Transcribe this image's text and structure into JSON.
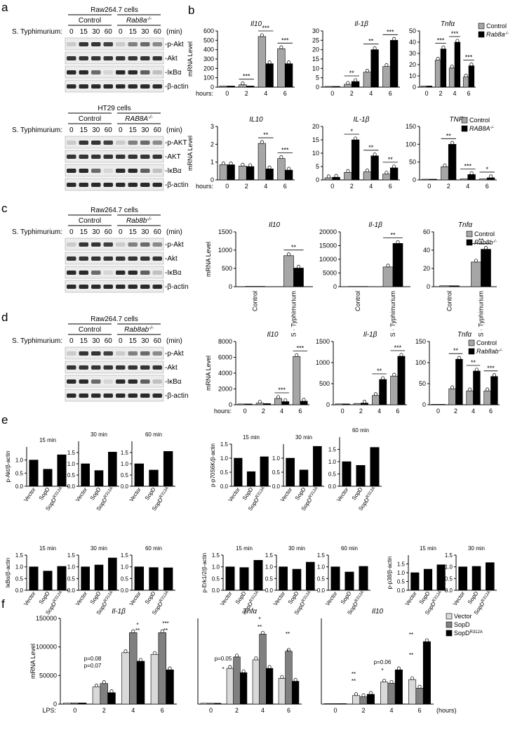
{
  "panels": {
    "a": "a",
    "b": "b",
    "c": "c",
    "d": "d",
    "e": "e",
    "f": "f"
  },
  "blots": [
    {
      "id": "a1",
      "cell": "Raw264.7 cells",
      "g1": "Control",
      "g2": "Rab8a",
      "g2sup": "-/-",
      "infect": "S. Typhimurium:",
      "times": [
        "0",
        "15",
        "30",
        "60",
        "0",
        "15",
        "30",
        "60"
      ],
      "unit": "(min)",
      "labels": [
        "-p-Akt",
        "-Akt",
        "-IκBα",
        "-β-actin"
      ]
    },
    {
      "id": "a2",
      "cell": "HT29 cells",
      "g1": "Control",
      "g2": "RAB8A",
      "g2sup": "-/-",
      "infect": "S. Typhimurium:",
      "times": [
        "0",
        "15",
        "30",
        "60",
        "0",
        "15",
        "30",
        "60"
      ],
      "unit": "(min)",
      "labels": [
        "-p-AKT",
        "-AKT",
        "-IκBα",
        "-β-actin"
      ]
    },
    {
      "id": "c",
      "cell": "Raw264.7 cells",
      "g1": "Control",
      "g2": "Rab8b",
      "g2sup": "-/-",
      "infect": "S. Typhimurium:",
      "times": [
        "0",
        "15",
        "30",
        "60",
        "0",
        "15",
        "30",
        "60"
      ],
      "unit": "(min)",
      "labels": [
        "-p-Akt",
        "-Akt",
        "-IκBα",
        "-β-actin"
      ]
    },
    {
      "id": "d",
      "cell": "Raw264.7 cells",
      "g1": "Control",
      "g2": "Rab8ab",
      "g2sup": "-/-",
      "infect": "S. Typhimurium:",
      "times": [
        "0",
        "15",
        "30",
        "60",
        "0",
        "15",
        "30",
        "60"
      ],
      "unit": "(min)",
      "labels": [
        "-p-Akt",
        "-Akt",
        "-IκBα",
        "-β-actin"
      ]
    }
  ],
  "chart_data": [
    {
      "id": "b1",
      "type": "bar",
      "title": "Il10",
      "ylabel": "mRNA Level",
      "xprefix": "hours:",
      "categories": [
        "0",
        "2",
        "4",
        "6"
      ],
      "ylim": [
        0,
        600
      ],
      "yticks": [
        0,
        100,
        200,
        300,
        400,
        500,
        600
      ],
      "series": [
        {
          "values": [
            12,
            25,
            540,
            410
          ]
        },
        {
          "values": [
            12,
            12,
            250,
            250
          ]
        }
      ],
      "sig": [
        "",
        "***",
        "***",
        "***"
      ]
    },
    {
      "id": "b2",
      "type": "bar",
      "title": "Il-1β",
      "categories": [
        "0",
        "2",
        "4",
        "6"
      ],
      "ylim": [
        0,
        30
      ],
      "yticks": [
        0,
        5,
        10,
        15,
        20,
        25,
        30
      ],
      "series": [
        {
          "values": [
            0.4,
            1.5,
            8,
            11
          ]
        },
        {
          "values": [
            0.4,
            3,
            20,
            25
          ]
        }
      ],
      "sig": [
        "",
        "**",
        "**",
        "***"
      ]
    },
    {
      "id": "b3",
      "type": "bar",
      "title": "Tnfα",
      "categories": [
        "0",
        "2",
        "4",
        "6"
      ],
      "ylim": [
        0,
        50
      ],
      "yticks": [
        0,
        10,
        20,
        30,
        40,
        50
      ],
      "series": [
        {
          "name": "Control",
          "values": [
            1,
            24,
            17,
            9
          ]
        },
        {
          "name": "Rab8a-/-",
          "values": [
            1,
            34,
            40,
            19
          ]
        }
      ],
      "sig": [
        "",
        "***",
        "***",
        "***"
      ]
    },
    {
      "id": "b4",
      "type": "bar",
      "title": "IL10",
      "ylabel": "mRNA Level",
      "xprefix": "hours:",
      "categories": [
        "0",
        "2",
        "4",
        "6"
      ],
      "ylim": [
        0,
        3
      ],
      "yticks": [
        0,
        1,
        2,
        3
      ],
      "series": [
        {
          "values": [
            0.85,
            0.78,
            2.05,
            1.2
          ]
        },
        {
          "values": [
            0.85,
            0.75,
            0.62,
            0.55
          ]
        }
      ],
      "sig": [
        "",
        "",
        "**",
        "***"
      ]
    },
    {
      "id": "b5",
      "type": "bar",
      "title": "IL-1β",
      "categories": [
        "0",
        "2",
        "4",
        "6"
      ],
      "ylim": [
        0,
        20
      ],
      "yticks": [
        0,
        5,
        10,
        15,
        20
      ],
      "series": [
        {
          "values": [
            0.8,
            2.8,
            3,
            2.2
          ]
        },
        {
          "values": [
            1,
            15,
            9,
            4.5
          ]
        }
      ],
      "sig": [
        "",
        "*",
        "**",
        "**"
      ]
    },
    {
      "id": "b6",
      "type": "bar",
      "title": "TNFα",
      "categories": [
        "0",
        "2",
        "4",
        "6"
      ],
      "ylim": [
        0,
        150
      ],
      "yticks": [
        0,
        50,
        100,
        150
      ],
      "series": [
        {
          "name": "Control",
          "values": [
            2,
            37,
            3,
            3
          ]
        },
        {
          "name": "RAB8A-/-",
          "values": [
            2,
            100,
            15,
            6
          ]
        }
      ],
      "sig": [
        "",
        "**",
        "***",
        "*"
      ]
    },
    {
      "id": "c1",
      "type": "bar",
      "title": "Il10",
      "ylabel": "mRNA Level",
      "categories": [
        "Control",
        "S · Typhimurium"
      ],
      "ylim": [
        0,
        1500
      ],
      "yticks": [
        0,
        500,
        1000,
        1500
      ],
      "series": [
        {
          "values": [
            10,
            850
          ]
        },
        {
          "values": [
            10,
            510
          ]
        }
      ],
      "sig": [
        "",
        "**"
      ]
    },
    {
      "id": "c2",
      "type": "bar",
      "title": "Il-1β",
      "categories": [
        "Control",
        "S · Typhimurium"
      ],
      "ylim": [
        0,
        20000
      ],
      "yticks": [
        0,
        5000,
        10000,
        15000,
        20000
      ],
      "series": [
        {
          "values": [
            100,
            7200
          ]
        },
        {
          "values": [
            100,
            15800
          ]
        }
      ],
      "sig": [
        "",
        "**"
      ]
    },
    {
      "id": "c3",
      "type": "bar",
      "title": "Tnfα",
      "categories": [
        "Control",
        "S · Typhimurium"
      ],
      "ylim": [
        0,
        60
      ],
      "yticks": [
        0,
        20,
        40,
        60
      ],
      "series": [
        {
          "name": "Control",
          "values": [
            1,
            27
          ]
        },
        {
          "name": "Rab8b-/-",
          "values": [
            1,
            41
          ]
        }
      ],
      "sig": [
        "",
        "**"
      ]
    },
    {
      "id": "d1",
      "type": "bar",
      "title": "Il10",
      "ylabel": "mRNA Level",
      "xprefix": "hours:",
      "categories": [
        "0",
        "2",
        "4",
        "6"
      ],
      "ylim": [
        0,
        8000
      ],
      "yticks": [
        0,
        2000,
        4000,
        6000,
        8000
      ],
      "series": [
        {
          "values": [
            100,
            200,
            800,
            6100
          ]
        },
        {
          "values": [
            100,
            150,
            400,
            450
          ]
        }
      ],
      "sig": [
        "",
        "",
        "***",
        "***"
      ]
    },
    {
      "id": "d2",
      "type": "bar",
      "title": "Il-1β",
      "categories": [
        "0",
        "2",
        "4",
        "6"
      ],
      "ylim": [
        0,
        1500
      ],
      "yticks": [
        0,
        500,
        1000,
        1500
      ],
      "series": [
        {
          "values": [
            20,
            30,
            220,
            680
          ]
        },
        {
          "values": [
            20,
            40,
            600,
            1150
          ]
        }
      ],
      "sig": [
        "",
        "",
        "**",
        "***"
      ]
    },
    {
      "id": "d3",
      "type": "bar",
      "title": "Tnfα",
      "categories": [
        "0",
        "2",
        "4",
        "6"
      ],
      "ylim": [
        0,
        150
      ],
      "yticks": [
        0,
        50,
        100,
        150
      ],
      "series": [
        {
          "name": "Control",
          "values": [
            1,
            38,
            33,
            33
          ]
        },
        {
          "name": "Rab8ab-/-",
          "values": [
            1,
            108,
            80,
            67
          ]
        }
      ],
      "sig": [
        "",
        "**",
        "**",
        "***"
      ]
    },
    {
      "id": "e1",
      "type": "bar",
      "title": "15 min",
      "ylabel": "p-Akt/β-actin",
      "categories": [
        "Vector",
        "SopD",
        "SopDR312A"
      ],
      "ylim": [
        0,
        1.5
      ],
      "yticks": [
        0.0,
        0.5,
        1.0
      ],
      "series": [
        {
          "values": [
            1.0,
            0.65,
            1.2
          ]
        }
      ]
    },
    {
      "id": "e2",
      "type": "bar",
      "title": "30 min",
      "categories": [
        "Vector",
        "SopD",
        "SopDR312A"
      ],
      "ylim": [
        0,
        2.0
      ],
      "yticks": [
        0.0,
        0.5,
        1.0,
        1.5
      ],
      "series": [
        {
          "values": [
            1.0,
            0.7,
            1.52
          ]
        }
      ]
    },
    {
      "id": "e3",
      "type": "bar",
      "title": "60 min",
      "categories": [
        "Vector",
        "SopD",
        "SopDR312A"
      ],
      "ylim": [
        0,
        2.0
      ],
      "yticks": [
        0.0,
        0.5,
        1.0,
        1.5
      ],
      "series": [
        {
          "values": [
            1.0,
            0.72,
            1.55
          ]
        }
      ]
    },
    {
      "id": "e4",
      "type": "bar",
      "title": "15 min",
      "ylabel": "p-p70S6K/β-actin",
      "categories": [
        "Vector",
        "SopD",
        "SopDR312A"
      ],
      "ylim": [
        0,
        1.5
      ],
      "yticks": [
        0.0,
        0.5,
        1.0,
        1.5
      ],
      "series": [
        {
          "values": [
            1.0,
            0.52,
            1.05
          ]
        }
      ]
    },
    {
      "id": "e5",
      "type": "bar",
      "title": "30 min",
      "categories": [
        "Vector",
        "SopD",
        "SopDR312A"
      ],
      "ylim": [
        0,
        1.5
      ],
      "yticks": [
        0.0,
        0.5,
        1.0
      ],
      "series": [
        {
          "values": [
            1.0,
            0.58,
            1.42
          ]
        }
      ]
    },
    {
      "id": "e6",
      "type": "bar",
      "title": "60 min",
      "categories": [
        "Vector",
        "SopD",
        "SopDR312A"
      ],
      "ylim": [
        0,
        2.0
      ],
      "yticks": [
        0.0,
        0.5,
        1.0,
        1.5
      ],
      "series": [
        {
          "values": [
            1.0,
            0.85,
            1.58
          ]
        }
      ]
    },
    {
      "id": "e7",
      "type": "bar",
      "title": "15 min",
      "ylabel": "IκBα/β-actin",
      "categories": [
        "Vector",
        "SopD",
        "SopDR312A"
      ],
      "ylim": [
        0,
        1.5
      ],
      "yticks": [
        0.0,
        0.5,
        1.0,
        1.5
      ],
      "series": [
        {
          "values": [
            1.0,
            0.82,
            1.02
          ]
        }
      ]
    },
    {
      "id": "e8",
      "type": "bar",
      "title": "30 min",
      "categories": [
        "Vector",
        "SopD",
        "SopDR312A"
      ],
      "ylim": [
        0,
        1.5
      ],
      "yticks": [
        0.0,
        0.5,
        1.0,
        1.5
      ],
      "series": [
        {
          "values": [
            1.0,
            1.08,
            1.38
          ]
        }
      ]
    },
    {
      "id": "e9",
      "type": "bar",
      "title": "60 min",
      "categories": [
        "Vector",
        "SopD",
        "SopDR312A"
      ],
      "ylim": [
        0,
        1.5
      ],
      "yticks": [
        0.0,
        0.5,
        1.0,
        1.5
      ],
      "series": [
        {
          "values": [
            1.0,
            0.97,
            0.96
          ]
        }
      ]
    },
    {
      "id": "e10",
      "type": "bar",
      "title": "15 min",
      "ylabel": "p-Erk1/2/β-actin",
      "categories": [
        "Vector",
        "SopD",
        "SopDR312A"
      ],
      "ylim": [
        0,
        1.5
      ],
      "yticks": [
        0.0,
        0.5,
        1.0,
        1.5
      ],
      "series": [
        {
          "values": [
            1.0,
            0.97,
            1.28
          ]
        }
      ]
    },
    {
      "id": "e11",
      "type": "bar",
      "title": "30 min",
      "categories": [
        "Vector",
        "SopD",
        "SopDR312A"
      ],
      "ylim": [
        0,
        1.5
      ],
      "yticks": [
        0.0,
        0.5,
        1.0,
        1.5
      ],
      "series": [
        {
          "values": [
            1.0,
            0.9,
            1.2
          ]
        }
      ]
    },
    {
      "id": "e12",
      "type": "bar",
      "title": "60 min",
      "categories": [
        "Vector",
        "SopD",
        "SopDR312A"
      ],
      "ylim": [
        0,
        1.5
      ],
      "yticks": [
        0.0,
        0.5,
        1.0,
        1.5
      ],
      "series": [
        {
          "values": [
            1.0,
            0.78,
            1.02
          ]
        }
      ]
    },
    {
      "id": "e13",
      "type": "bar",
      "title": "15 min",
      "ylabel": "p-p38/β-actin",
      "categories": [
        "Vector",
        "SopD",
        "SopDR312A"
      ],
      "ylim": [
        0,
        2.0
      ],
      "yticks": [
        0.0,
        0.5,
        1.0,
        1.5
      ],
      "series": [
        {
          "values": [
            1.0,
            1.2,
            1.45
          ]
        }
      ]
    },
    {
      "id": "e14",
      "type": "bar",
      "title": "30 min",
      "categories": [
        "Vector",
        "SopD",
        "SopDR312A"
      ],
      "ylim": [
        0,
        1.5
      ],
      "yticks": [
        0.0,
        0.5,
        1.0,
        1.5
      ],
      "series": [
        {
          "values": [
            1.0,
            1.02,
            1.18
          ]
        }
      ]
    },
    {
      "id": "f1",
      "type": "bar",
      "title": "Il-1β",
      "ylabel": "mRNA Level",
      "xprefix": "LPS:",
      "categories": [
        "0",
        "2",
        "4",
        "6"
      ],
      "ylim": [
        0,
        150000
      ],
      "yticks": [
        0,
        50000,
        100000,
        150000
      ],
      "series": [
        {
          "values": [
            2000,
            30000,
            90000,
            87000
          ]
        },
        {
          "values": [
            2000,
            36000,
            125000,
            125000
          ]
        },
        {
          "values": [
            2000,
            20000,
            75000,
            60000
          ]
        }
      ]
    },
    {
      "id": "f2",
      "type": "bar",
      "title": "Tnfα",
      "categories": [
        "0",
        "2",
        "4",
        "6"
      ],
      "ylim": [
        0,
        300
      ],
      "yticks": [],
      "series": [
        {
          "values": [
            3,
            125,
            155,
            90
          ]
        },
        {
          "values": [
            3,
            165,
            245,
            185
          ]
        },
        {
          "values": [
            3,
            110,
            125,
            80
          ]
        }
      ]
    },
    {
      "id": "f3",
      "type": "bar",
      "title": "Il10",
      "categories": [
        "0",
        "2",
        "4",
        "6"
      ],
      "xsuffix": "(hours)",
      "ylim": [
        0,
        350
      ],
      "yticks": [],
      "series": [
        {
          "name": "Vector",
          "values": [
            2,
            35,
            90,
            100
          ]
        },
        {
          "name": "SopD",
          "values": [
            2,
            30,
            85,
            65
          ]
        },
        {
          "name": "SopDR312A",
          "values": [
            2,
            40,
            140,
            255
          ]
        }
      ]
    }
  ],
  "f_annot": [
    {
      "chart": "f1",
      "text": "*"
    },
    {
      "chart": "f1",
      "text": "**"
    },
    {
      "chart": "f1",
      "text": "**"
    },
    {
      "chart": "f1",
      "text": "***"
    },
    {
      "chart": "f1",
      "text": "p=0.08"
    },
    {
      "chart": "f1",
      "text": "p=0.07"
    },
    {
      "chart": "f2",
      "text": "p=0.05"
    },
    {
      "chart": "f2",
      "text": "*"
    },
    {
      "chart": "f2",
      "text": "*"
    },
    {
      "chart": "f2",
      "text": "**"
    },
    {
      "chart": "f2",
      "text": "**"
    },
    {
      "chart": "f2",
      "text": "*"
    },
    {
      "chart": "f3",
      "text": "**"
    },
    {
      "chart": "f3",
      "text": "**"
    },
    {
      "chart": "f3",
      "text": "p=0.06"
    },
    {
      "chart": "f3",
      "text": "*"
    },
    {
      "chart": "f3",
      "text": "**"
    },
    {
      "chart": "f3",
      "text": "**"
    }
  ],
  "colors": {
    "control": "#a6a6a6",
    "ko": "#000000",
    "vector": "#d9d9d9",
    "sopd": "#808080",
    "mut": "#000000"
  }
}
